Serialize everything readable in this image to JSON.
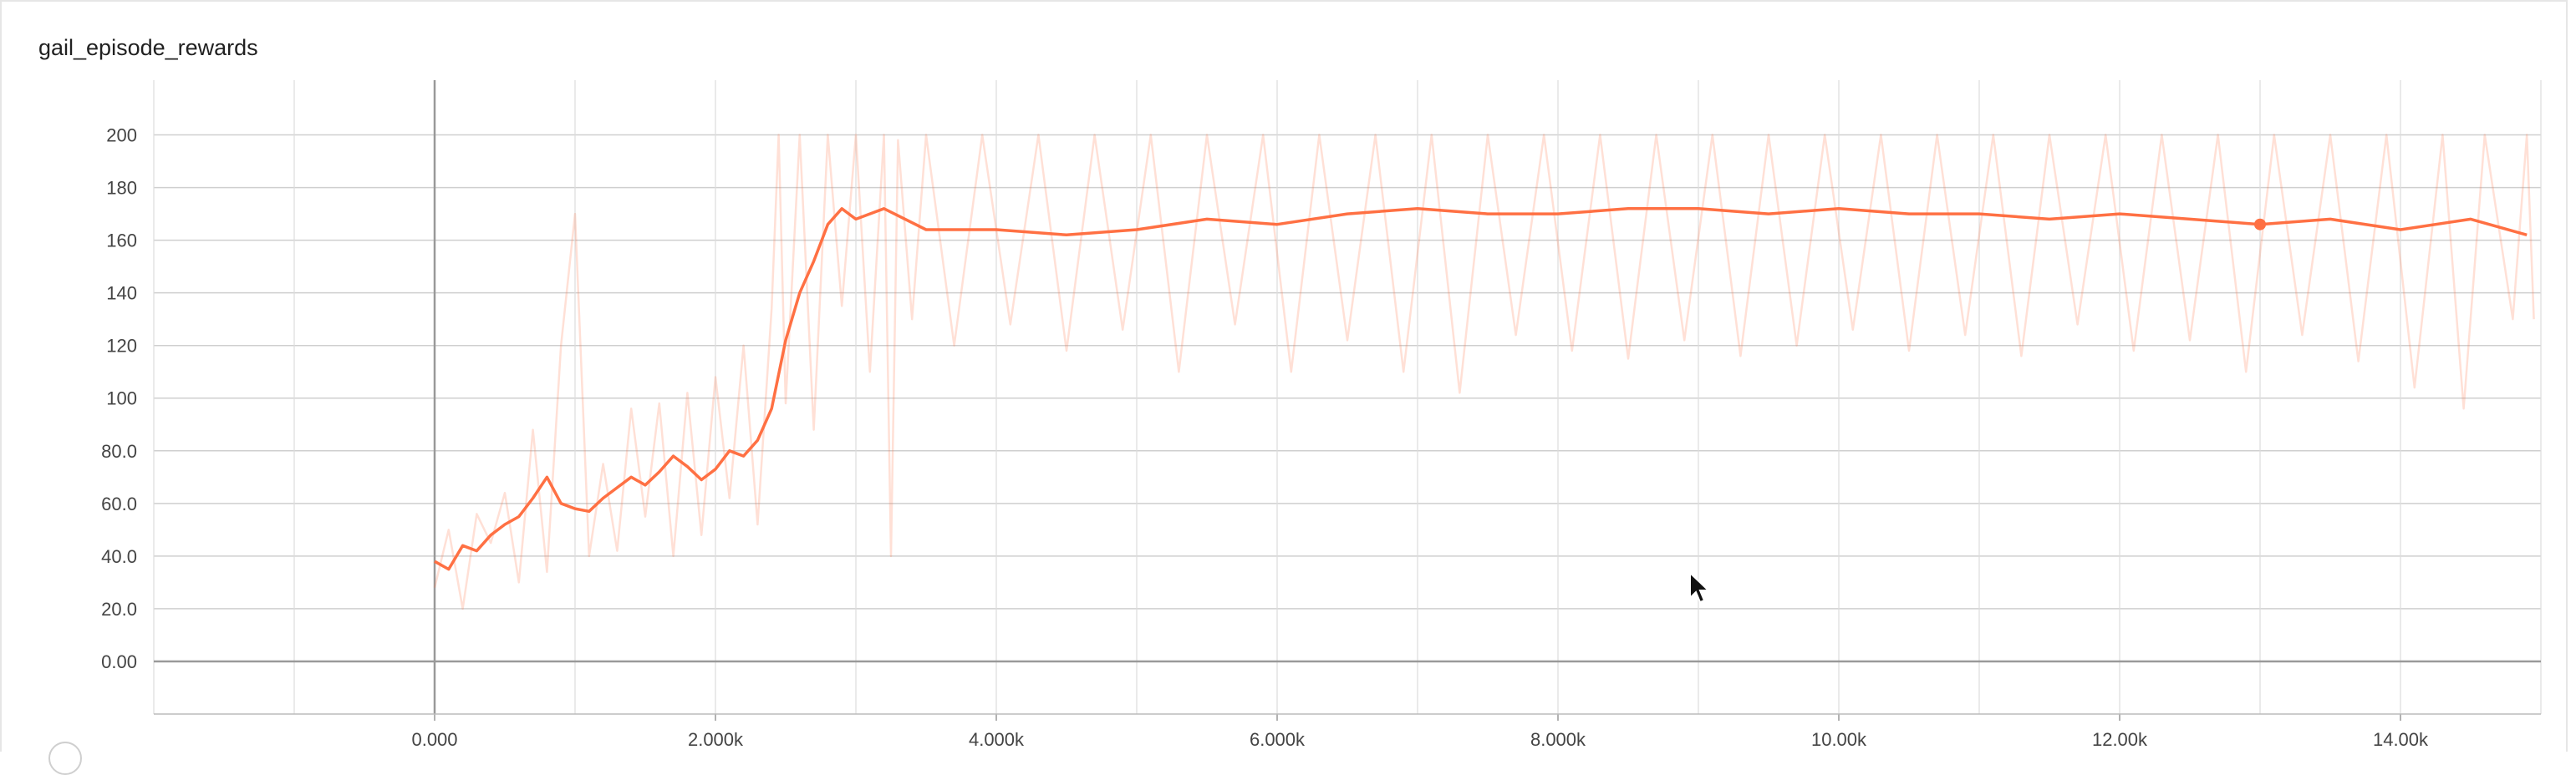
{
  "chart_data": {
    "type": "line",
    "title": "gail_episode_rewards",
    "xlabel": "",
    "ylabel": "",
    "xlim": [
      -2000,
      15000
    ],
    "ylim": [
      -20,
      210
    ],
    "grid": true,
    "x_ticks": [
      {
        "value": 0,
        "label": "0.000"
      },
      {
        "value": 2000,
        "label": "2.000k"
      },
      {
        "value": 4000,
        "label": "4.000k"
      },
      {
        "value": 6000,
        "label": "6.000k"
      },
      {
        "value": 8000,
        "label": "8.000k"
      },
      {
        "value": 10000,
        "label": "10.00k"
      },
      {
        "value": 12000,
        "label": "12.00k"
      },
      {
        "value": 14000,
        "label": "14.00k"
      }
    ],
    "y_ticks": [
      {
        "value": 0,
        "label": "0.00"
      },
      {
        "value": 20,
        "label": "20.0"
      },
      {
        "value": 40,
        "label": "40.0"
      },
      {
        "value": 60,
        "label": "60.0"
      },
      {
        "value": 80,
        "label": "80.0"
      },
      {
        "value": 100,
        "label": "100"
      },
      {
        "value": 120,
        "label": "120"
      },
      {
        "value": 140,
        "label": "140"
      },
      {
        "value": 160,
        "label": "160"
      },
      {
        "value": 180,
        "label": "180"
      },
      {
        "value": 200,
        "label": "200"
      }
    ],
    "series": [
      {
        "color": "#ff7043",
        "smoothed": true,
        "points": [
          [
            0,
            38
          ],
          [
            100,
            35
          ],
          [
            200,
            44
          ],
          [
            300,
            42
          ],
          [
            400,
            48
          ],
          [
            500,
            52
          ],
          [
            600,
            55
          ],
          [
            700,
            62
          ],
          [
            800,
            70
          ],
          [
            900,
            60
          ],
          [
            1000,
            58
          ],
          [
            1100,
            57
          ],
          [
            1200,
            62
          ],
          [
            1300,
            66
          ],
          [
            1400,
            70
          ],
          [
            1500,
            67
          ],
          [
            1600,
            72
          ],
          [
            1700,
            78
          ],
          [
            1800,
            74
          ],
          [
            1900,
            69
          ],
          [
            2000,
            73
          ],
          [
            2100,
            80
          ],
          [
            2200,
            78
          ],
          [
            2300,
            84
          ],
          [
            2400,
            96
          ],
          [
            2500,
            122
          ],
          [
            2600,
            140
          ],
          [
            2700,
            152
          ],
          [
            2800,
            166
          ],
          [
            2900,
            172
          ],
          [
            3000,
            168
          ],
          [
            3200,
            172
          ],
          [
            3500,
            164
          ],
          [
            4000,
            164
          ],
          [
            4500,
            162
          ],
          [
            5000,
            164
          ],
          [
            5500,
            168
          ],
          [
            6000,
            166
          ],
          [
            6500,
            170
          ],
          [
            7000,
            172
          ],
          [
            7500,
            170
          ],
          [
            8000,
            170
          ],
          [
            8500,
            172
          ],
          [
            9000,
            172
          ],
          [
            9500,
            170
          ],
          [
            10000,
            172
          ],
          [
            10500,
            170
          ],
          [
            11000,
            170
          ],
          [
            11500,
            168
          ],
          [
            12000,
            170
          ],
          [
            12500,
            168
          ],
          [
            13000,
            166
          ],
          [
            13500,
            168
          ],
          [
            14000,
            164
          ],
          [
            14500,
            168
          ],
          [
            14900,
            162
          ]
        ]
      },
      {
        "color": "#ff7043",
        "smoothed": false,
        "points": [
          [
            0,
            28
          ],
          [
            100,
            50
          ],
          [
            200,
            20
          ],
          [
            300,
            56
          ],
          [
            400,
            45
          ],
          [
            500,
            64
          ],
          [
            600,
            30
          ],
          [
            700,
            88
          ],
          [
            800,
            34
          ],
          [
            900,
            120
          ],
          [
            1000,
            170
          ],
          [
            1100,
            40
          ],
          [
            1200,
            75
          ],
          [
            1300,
            42
          ],
          [
            1400,
            96
          ],
          [
            1500,
            55
          ],
          [
            1600,
            98
          ],
          [
            1700,
            40
          ],
          [
            1800,
            102
          ],
          [
            1900,
            48
          ],
          [
            2000,
            108
          ],
          [
            2100,
            62
          ],
          [
            2200,
            120
          ],
          [
            2300,
            52
          ],
          [
            2400,
            134
          ],
          [
            2450,
            200
          ],
          [
            2500,
            98
          ],
          [
            2600,
            200
          ],
          [
            2700,
            88
          ],
          [
            2800,
            200
          ],
          [
            2900,
            135
          ],
          [
            3000,
            200
          ],
          [
            3100,
            110
          ],
          [
            3200,
            200
          ],
          [
            3250,
            40
          ],
          [
            3300,
            198
          ],
          [
            3400,
            130
          ],
          [
            3500,
            200
          ],
          [
            3700,
            120
          ],
          [
            3900,
            200
          ],
          [
            4100,
            128
          ],
          [
            4300,
            200
          ],
          [
            4500,
            118
          ],
          [
            4700,
            200
          ],
          [
            4900,
            126
          ],
          [
            5100,
            200
          ],
          [
            5300,
            110
          ],
          [
            5500,
            200
          ],
          [
            5700,
            128
          ],
          [
            5900,
            200
          ],
          [
            6100,
            110
          ],
          [
            6300,
            200
          ],
          [
            6500,
            122
          ],
          [
            6700,
            200
          ],
          [
            6900,
            110
          ],
          [
            7100,
            200
          ],
          [
            7300,
            102
          ],
          [
            7500,
            200
          ],
          [
            7700,
            124
          ],
          [
            7900,
            200
          ],
          [
            8100,
            118
          ],
          [
            8300,
            200
          ],
          [
            8500,
            115
          ],
          [
            8700,
            200
          ],
          [
            8900,
            122
          ],
          [
            9100,
            200
          ],
          [
            9300,
            116
          ],
          [
            9500,
            200
          ],
          [
            9700,
            120
          ],
          [
            9900,
            200
          ],
          [
            10100,
            126
          ],
          [
            10300,
            200
          ],
          [
            10500,
            118
          ],
          [
            10700,
            200
          ],
          [
            10900,
            124
          ],
          [
            11100,
            200
          ],
          [
            11300,
            116
          ],
          [
            11500,
            200
          ],
          [
            11700,
            128
          ],
          [
            11900,
            200
          ],
          [
            12100,
            118
          ],
          [
            12300,
            200
          ],
          [
            12500,
            122
          ],
          [
            12700,
            200
          ],
          [
            12900,
            110
          ],
          [
            13100,
            200
          ],
          [
            13300,
            124
          ],
          [
            13500,
            200
          ],
          [
            13700,
            114
          ],
          [
            13900,
            200
          ],
          [
            14100,
            104
          ],
          [
            14300,
            200
          ],
          [
            14450,
            96
          ],
          [
            14600,
            200
          ],
          [
            14800,
            130
          ],
          [
            14900,
            200
          ],
          [
            14950,
            130
          ]
        ]
      }
    ]
  }
}
